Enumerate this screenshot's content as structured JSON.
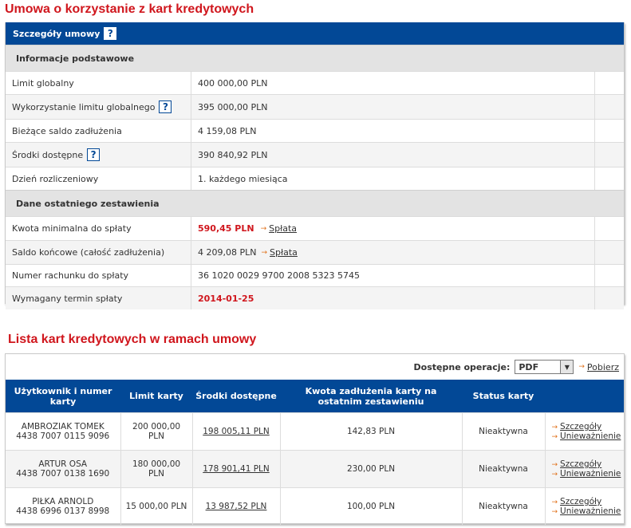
{
  "page": {
    "title": "Umowa o korzystanie z kart kredytowych",
    "details_header": "Szczegóły umowy",
    "help_glyph": "?",
    "sections": [
      {
        "title": "Informacje podstawowe",
        "rows": [
          {
            "label": "Limit globalny",
            "value": "400 000,00 PLN"
          },
          {
            "label": "Wykorzystanie limitu globalnego",
            "value": "395 000,00 PLN",
            "help": true
          },
          {
            "label": "Bieżące saldo zadłużenia",
            "value": "4 159,08 PLN"
          },
          {
            "label": "Środki dostępne",
            "value": "390 840,92 PLN",
            "help": true
          },
          {
            "label": "Dzień rozliczeniowy",
            "value": "1. każdego miesiąca"
          }
        ]
      },
      {
        "title": "Dane ostatniego zestawienia",
        "rows": [
          {
            "label": "Kwota minimalna do spłaty",
            "value": "590,45 PLN",
            "link": "Spłata"
          },
          {
            "label": "Saldo końcowe (całość zadłużenia)",
            "value": "4 209,08 PLN",
            "link": "Spłata"
          },
          {
            "label": "Numer rachunku do spłaty",
            "value": "36 1020 0029 9700 2008 5323 5745"
          },
          {
            "label": "Wymagany termin spłaty",
            "value": "2014-01-25"
          }
        ]
      }
    ]
  },
  "cards": {
    "title": "Lista kart kredytowych w ramach umowy",
    "operations_label": "Dostępne operacje:",
    "format_selected": "PDF",
    "download_label": "Pobierz",
    "headers": [
      "Użytkownik i numer karty",
      "Limit karty",
      "Środki dostępne",
      "Kwota zadłużenia karty na ostatnim zestawieniu",
      "Status karty",
      ""
    ],
    "rows": [
      {
        "user": "AMBROZIAK TOMEK",
        "number": "4438 7007 0115 9096",
        "limit": "200 000,00 PLN",
        "available": "198 005,11 PLN",
        "debt": "142,83 PLN",
        "status": "Nieaktywna",
        "action1": "Szczegóły",
        "action2": "Unieważnienie"
      },
      {
        "user": "ARTUR OSA",
        "number": "4438 7007 0138 1690",
        "limit": "180 000,00 PLN",
        "available": "178 901,41 PLN",
        "debt": "230,00 PLN",
        "status": "Nieaktywna",
        "action1": "Szczegóły",
        "action2": "Unieważnienie"
      },
      {
        "user": "PIŁKA ARNOLD",
        "number": "4438 6996 0137 8998",
        "limit": "15 000,00 PLN",
        "available": "13 987,52 PLN",
        "debt": "100,00 PLN",
        "status": "Nieaktywna",
        "action1": "Szczegóły",
        "action2": "Unieważnienie"
      }
    ]
  },
  "colors": {
    "header_blue": "#024896",
    "title_red": "#d0161d",
    "section_gray": "#e3e3e3"
  }
}
